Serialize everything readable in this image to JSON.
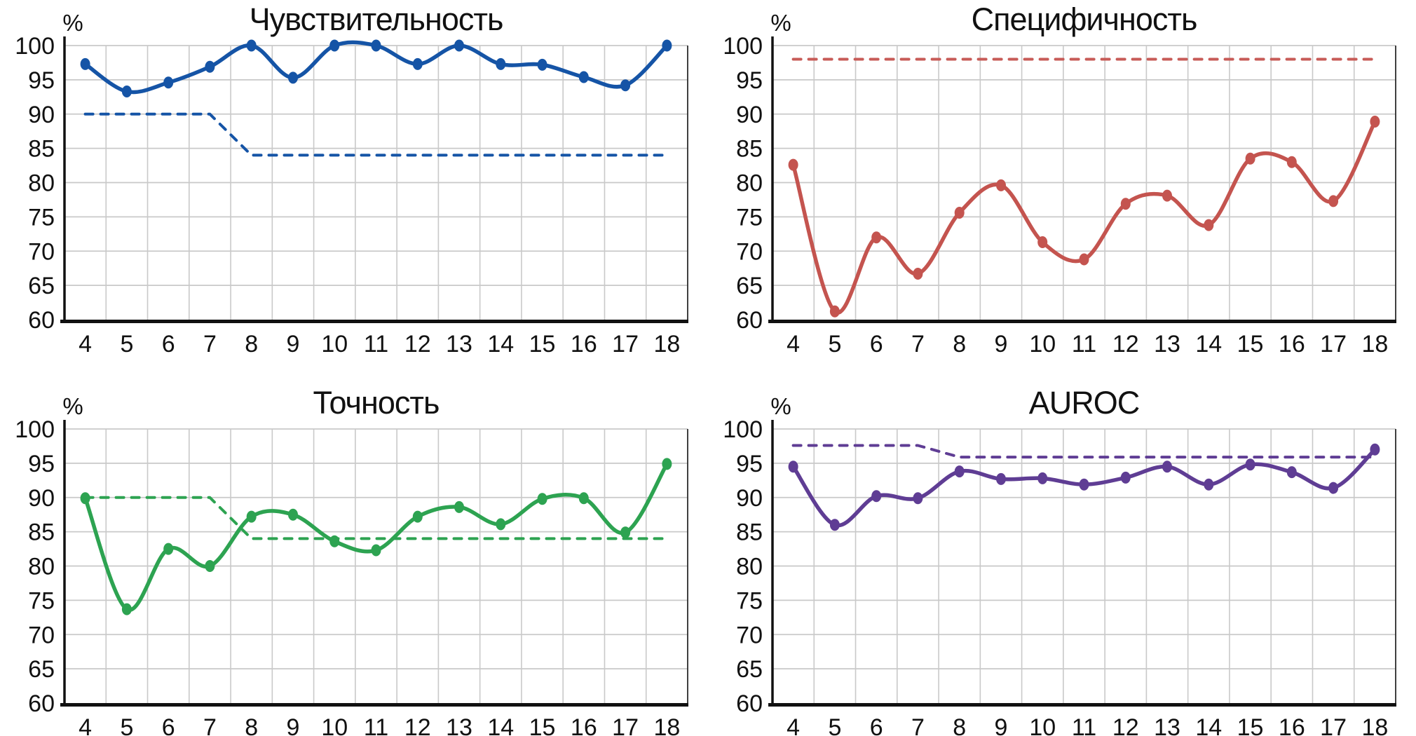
{
  "page": {
    "background": "#ffffff",
    "grid_color": "#C9C9C9",
    "axis_color": "#111111"
  },
  "chart_data": [
    {
      "type": "line",
      "title": "Чувствительность",
      "ylabel": "%",
      "categories": [
        4,
        5,
        6,
        7,
        8,
        9,
        10,
        11,
        12,
        13,
        14,
        15,
        16,
        17,
        18
      ],
      "ylim": [
        60,
        100
      ],
      "ytick_step": 5,
      "grid": true,
      "legend": "none",
      "series": [
        {
          "style": "solid",
          "marker": "circle",
          "color": "#1554A6",
          "values": [
            97.3,
            93.3,
            94.6,
            96.9,
            100,
            95.3,
            100,
            100,
            97.3,
            100,
            97.3,
            97.2,
            95.4,
            94.2,
            100
          ]
        },
        {
          "style": "dashed",
          "marker": "none",
          "color": "#1554A6",
          "values": [
            90,
            90,
            90,
            90,
            84,
            84,
            84,
            84,
            84,
            84,
            84,
            84,
            84,
            84,
            84
          ]
        }
      ]
    },
    {
      "type": "line",
      "title": "Специфичность",
      "ylabel": "%",
      "categories": [
        4,
        5,
        6,
        7,
        8,
        9,
        10,
        11,
        12,
        13,
        14,
        15,
        16,
        17,
        18
      ],
      "ylim": [
        60,
        100
      ],
      "ytick_step": 5,
      "grid": true,
      "legend": "none",
      "series": [
        {
          "style": "solid",
          "marker": "circle",
          "color": "#C4544F",
          "values": [
            82.6,
            61.2,
            72.0,
            66.7,
            75.6,
            79.6,
            71.3,
            68.8,
            76.9,
            78.1,
            73.8,
            83.5,
            83.0,
            77.3,
            88.9
          ]
        },
        {
          "style": "dashed",
          "marker": "none",
          "color": "#C75B57",
          "values": [
            98,
            98,
            98,
            98,
            98,
            98,
            98,
            98,
            98,
            98,
            98,
            98,
            98,
            98,
            98
          ]
        }
      ]
    },
    {
      "type": "line",
      "title": "Точность",
      "ylabel": "%",
      "categories": [
        4,
        5,
        6,
        7,
        8,
        9,
        10,
        11,
        12,
        13,
        14,
        15,
        16,
        17,
        18
      ],
      "ylim": [
        60,
        100
      ],
      "ytick_step": 5,
      "grid": true,
      "legend": "none",
      "series": [
        {
          "style": "solid",
          "marker": "circle",
          "color": "#2DA351",
          "values": [
            89.9,
            73.7,
            82.5,
            80.0,
            87.2,
            87.5,
            83.6,
            82.3,
            87.2,
            88.6,
            86.1,
            89.8,
            89.9,
            84.9,
            94.9
          ]
        },
        {
          "style": "dashed",
          "marker": "none",
          "color": "#2DA351",
          "values": [
            90,
            90,
            90,
            90,
            84,
            84,
            84,
            84,
            84,
            84,
            84,
            84,
            84,
            84,
            84
          ]
        }
      ]
    },
    {
      "type": "line",
      "title": "AUROC",
      "ylabel": "%",
      "categories": [
        4,
        5,
        6,
        7,
        8,
        9,
        10,
        11,
        12,
        13,
        14,
        15,
        16,
        17,
        18
      ],
      "ylim": [
        60,
        100
      ],
      "ytick_step": 5,
      "grid": true,
      "legend": "none",
      "series": [
        {
          "style": "solid",
          "marker": "circle",
          "color": "#5F3D94",
          "values": [
            94.5,
            86.0,
            90.2,
            89.9,
            93.8,
            92.7,
            92.8,
            91.9,
            92.9,
            94.5,
            91.9,
            94.8,
            93.7,
            91.4,
            97.0
          ]
        },
        {
          "style": "dashed",
          "marker": "none",
          "color": "#5F3D94",
          "values": [
            97.6,
            97.6,
            97.6,
            97.6,
            95.9,
            95.9,
            95.9,
            95.9,
            95.9,
            95.9,
            95.9,
            95.9,
            95.9,
            95.9,
            95.9
          ]
        }
      ]
    }
  ]
}
